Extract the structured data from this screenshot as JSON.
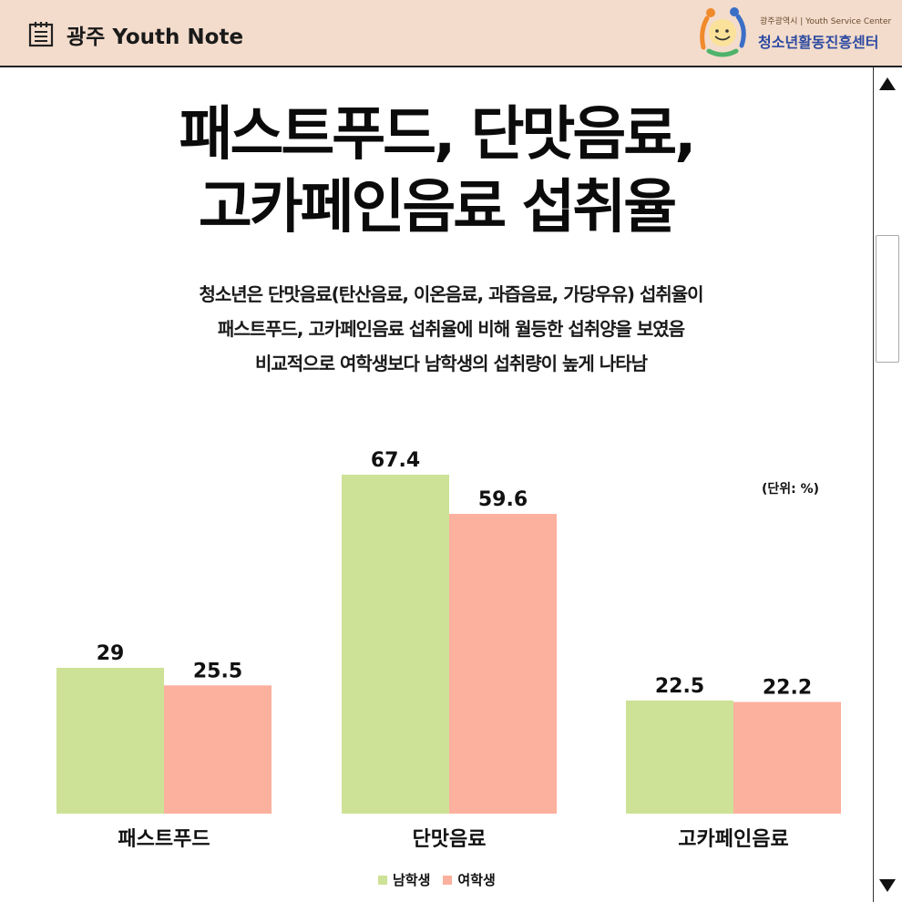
{
  "header": {
    "app_title": "광주 Youth Note",
    "logo_top_text": "광주광역시 | Youth Service Center",
    "logo_name": "청소년활동진흥센터"
  },
  "main": {
    "title_line1": "패스트푸드, 단맛음료,",
    "title_line2": "고카페인음료 섭취율",
    "subtitle_lines": [
      "청소년은 단맛음료(탄산음료, 이온음료, 과즙음료, 가당우유) 섭취율이",
      "패스트푸드, 고카페인음료 섭취율에 비해 월등한 섭취양을 보였음",
      "비교적으로 여학생보다 남학생의 섭취량이 높게 나타남"
    ],
    "unit_label": "(단위: %)"
  },
  "chart_data": {
    "type": "bar",
    "categories": [
      "패스트푸드",
      "단맛음료",
      "고카페인음료"
    ],
    "series": [
      {
        "name": "남학생",
        "values": [
          29,
          67.4,
          22.5
        ],
        "color": "#cde296"
      },
      {
        "name": "여학생",
        "values": [
          25.5,
          59.6,
          22.2
        ],
        "color": "#fcb09e"
      }
    ],
    "value_labels": [
      [
        "29",
        "67.4",
        "22.5"
      ],
      [
        "25.5",
        "59.6",
        "22.2"
      ]
    ],
    "title": "",
    "xlabel": "",
    "ylabel": "",
    "ylim": [
      0,
      70
    ],
    "grid": false,
    "legend": "bottom-center"
  },
  "scrollbar": {
    "up_icon": "triangle-up-icon",
    "down_icon": "triangle-down-icon"
  }
}
